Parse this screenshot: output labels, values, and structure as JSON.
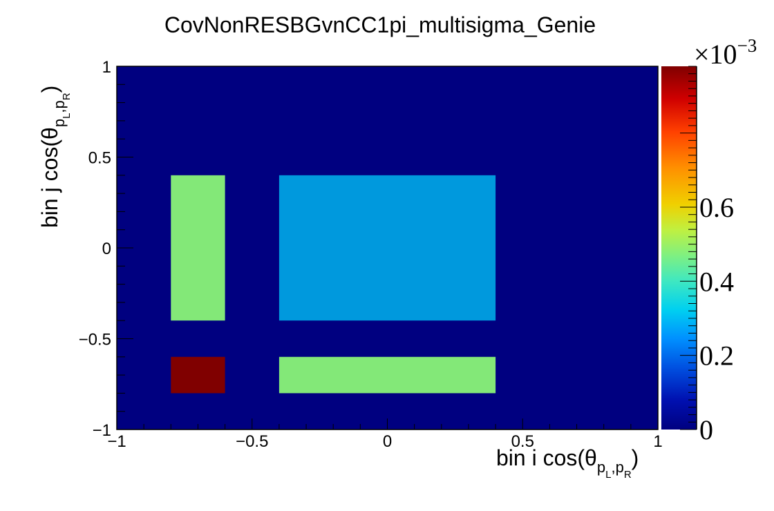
{
  "chart_data": {
    "type": "heatmap",
    "title": "CovNonRESBGvnCC1pi_multisigma_Genie",
    "xlabel": {
      "prefix": "bin i cos(θ",
      "sub1": "p",
      "sub1_sub": "L",
      "comma": ",",
      "sub2": "p",
      "sub2_sub": "R",
      "suffix": ")"
    },
    "ylabel": {
      "prefix": "bin j cos(θ",
      "sub1": "p",
      "sub1_sub": "L",
      "comma": ",",
      "sub2": "p",
      "sub2_sub": "R",
      "suffix": ")"
    },
    "xlim": [
      -1,
      1
    ],
    "ylim": [
      -1,
      1
    ],
    "zlim": [
      0,
      0.00098
    ],
    "x_ticks": [
      "−1",
      "−0.5",
      "0",
      "0.5",
      "1"
    ],
    "y_ticks": [
      "−1",
      "−0.5",
      "0",
      "0.5",
      "1"
    ],
    "colorbar": {
      "exponent_base": "×10",
      "exponent_power": "−3",
      "ticks": [
        {
          "label": "0",
          "value": 0
        },
        {
          "label": "0.2",
          "value": 0.2
        },
        {
          "label": "0.4",
          "value": 0.4
        },
        {
          "label": "0.6",
          "value": 0.6
        }
      ],
      "max_scaled": 0.98
    },
    "background_value": 0,
    "cells": [
      {
        "x0": -0.8,
        "x1": -0.6,
        "y0": -0.4,
        "y1": 0.4,
        "value": 0.00041,
        "color": "#83e878"
      },
      {
        "x0": -0.4,
        "x1": 0.4,
        "y0": -0.4,
        "y1": 0.4,
        "value": 0.00016,
        "color": "#0099dd"
      },
      {
        "x0": -0.8,
        "x1": -0.6,
        "y0": -0.8,
        "y1": -0.6,
        "value": 0.00098,
        "color": "#800000"
      },
      {
        "x0": -0.4,
        "x1": 0.4,
        "y0": -0.8,
        "y1": -0.6,
        "value": 0.00041,
        "color": "#83e878"
      }
    ],
    "colors": {
      "background": "#000080",
      "palette": [
        "#000080",
        "#0010b0",
        "#0050e0",
        "#0090ff",
        "#00d0f0",
        "#40e8c0",
        "#80f080",
        "#c0f040",
        "#f0d000",
        "#ff9000",
        "#ff4000",
        "#d00000",
        "#800000"
      ]
    }
  }
}
